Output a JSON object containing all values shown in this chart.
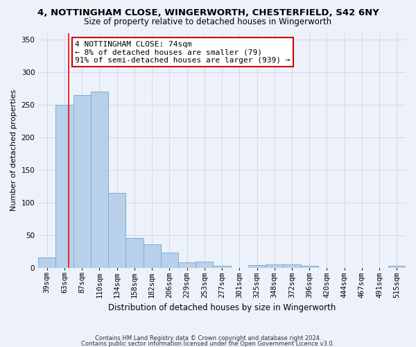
{
  "title_line1": "4, NOTTINGHAM CLOSE, WINGERWORTH, CHESTERFIELD, S42 6NY",
  "title_line2": "Size of property relative to detached houses in Wingerworth",
  "xlabel": "Distribution of detached houses by size in Wingerworth",
  "ylabel": "Number of detached properties",
  "categories": [
    "39sqm",
    "63sqm",
    "87sqm",
    "110sqm",
    "134sqm",
    "158sqm",
    "182sqm",
    "206sqm",
    "229sqm",
    "253sqm",
    "277sqm",
    "301sqm",
    "325sqm",
    "348sqm",
    "372sqm",
    "396sqm",
    "420sqm",
    "444sqm",
    "467sqm",
    "491sqm",
    "515sqm"
  ],
  "values": [
    16,
    250,
    265,
    270,
    115,
    45,
    36,
    23,
    8,
    9,
    3,
    0,
    4,
    5,
    5,
    3,
    0,
    0,
    0,
    0,
    3
  ],
  "bar_color": "#b8d0ea",
  "bar_edge_color": "#7aafd4",
  "grid_color": "#d0d8ea",
  "bg_color": "#edf2fa",
  "red_line_x": 1.25,
  "annotation_line1": "4 NOTTINGHAM CLOSE: 74sqm",
  "annotation_line2": "← 8% of detached houses are smaller (79)",
  "annotation_line3": "91% of semi-detached houses are larger (939) →",
  "annotation_box_color": "#ffffff",
  "annotation_box_edge_color": "#cc0000",
  "footnote_line1": "Contains HM Land Registry data © Crown copyright and database right 2024.",
  "footnote_line2": "Contains public sector information licensed under the Open Government Licence v3.0.",
  "ylim": [
    0,
    360
  ],
  "yticks": [
    0,
    50,
    100,
    150,
    200,
    250,
    300,
    350
  ],
  "title_fontsize": 9.5,
  "subtitle_fontsize": 8.5,
  "xlabel_fontsize": 8.5,
  "ylabel_fontsize": 8,
  "tick_fontsize": 7.5,
  "annotation_fontsize": 8,
  "footnote_fontsize": 6
}
